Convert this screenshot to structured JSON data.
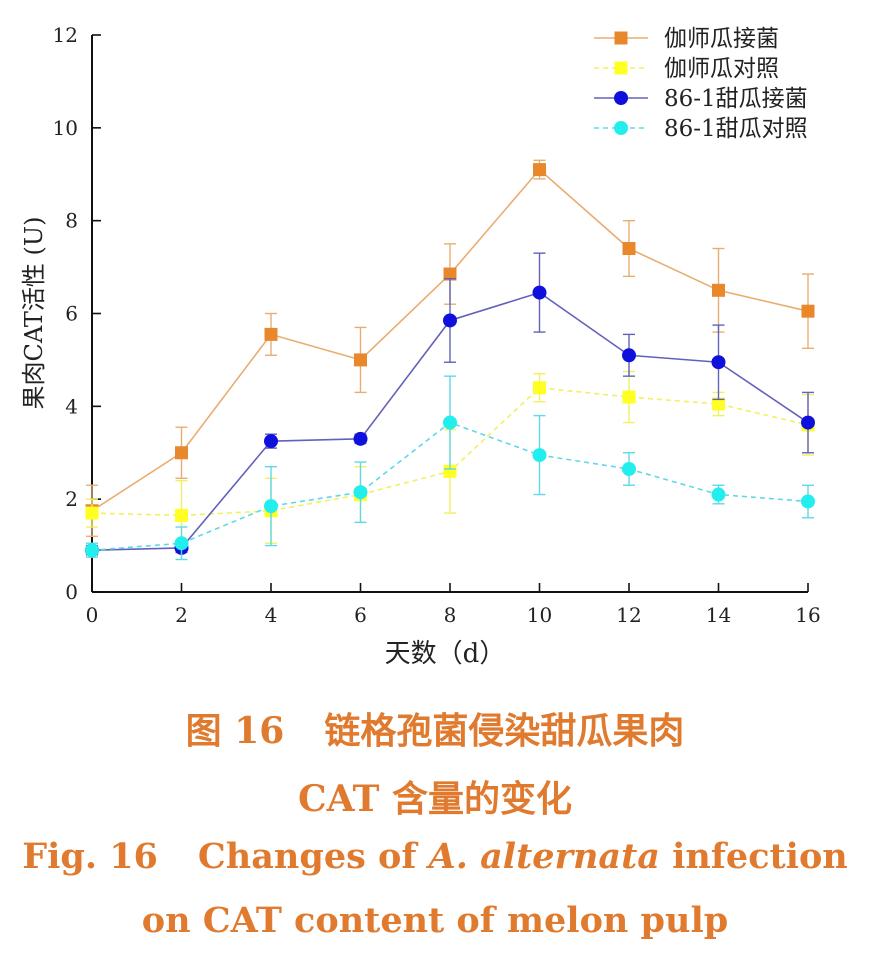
{
  "chart_data": {
    "type": "line",
    "xlabel": "天数（d）",
    "ylabel": "果肉CAT活性 (U)",
    "xlim": [
      0,
      16
    ],
    "ylim": [
      0,
      12
    ],
    "xticks": [
      0,
      2,
      4,
      6,
      8,
      10,
      12,
      14,
      16
    ],
    "yticks": [
      0,
      2,
      4,
      6,
      8,
      10,
      12
    ],
    "legend_position": "top-right",
    "grid": false,
    "x": [
      0,
      2,
      4,
      6,
      8,
      10,
      12,
      14,
      16
    ],
    "series": [
      {
        "name": "伽师瓜接菌",
        "color": "#e8882a",
        "line_color": "#e9ad72",
        "marker": "square",
        "dashed": false,
        "values": [
          1.75,
          3.0,
          5.55,
          5.0,
          6.85,
          9.1,
          7.4,
          6.5,
          6.05
        ],
        "errors": [
          0.55,
          0.55,
          0.45,
          0.7,
          0.65,
          0.2,
          0.6,
          0.9,
          0.8
        ]
      },
      {
        "name": "伽师瓜对照",
        "color": "#ffff22",
        "line_color": "#f2f060",
        "marker": "square",
        "dashed": true,
        "values": [
          1.7,
          1.65,
          1.75,
          2.1,
          2.6,
          4.4,
          4.2,
          4.05,
          3.6
        ],
        "errors": [
          0.3,
          0.75,
          0.7,
          0.6,
          0.9,
          0.3,
          0.55,
          0.25,
          0.65
        ]
      },
      {
        "name": "86-1甜瓜接菌",
        "color": "#1010dd",
        "line_color": "#6262ba",
        "marker": "circle",
        "dashed": false,
        "values": [
          0.9,
          0.95,
          3.25,
          3.3,
          5.85,
          6.45,
          5.1,
          4.95,
          3.65
        ],
        "errors": [
          0.1,
          0.1,
          0.15,
          0.1,
          0.9,
          0.85,
          0.45,
          0.8,
          0.65
        ]
      },
      {
        "name": "86-1甜瓜对照",
        "color": "#22eeee",
        "line_color": "#5fd8e8",
        "marker": "circle",
        "dashed": true,
        "values": [
          0.9,
          1.05,
          1.85,
          2.15,
          3.65,
          2.95,
          2.65,
          2.1,
          1.95
        ],
        "errors": [
          0.15,
          0.35,
          0.85,
          0.65,
          1.0,
          0.85,
          0.35,
          0.2,
          0.35
        ]
      }
    ]
  },
  "caption": {
    "cn_label": "图 16",
    "cn_line1": "链格孢菌侵染甜瓜果肉",
    "cn_line2": "CAT 含量的变化",
    "en_label": "Fig. 16",
    "en_line1_a": "Changes of",
    "en_line1_italic": "A. alternata",
    "en_line1_b": "infection",
    "en_line2": "on CAT content of melon pulp"
  }
}
